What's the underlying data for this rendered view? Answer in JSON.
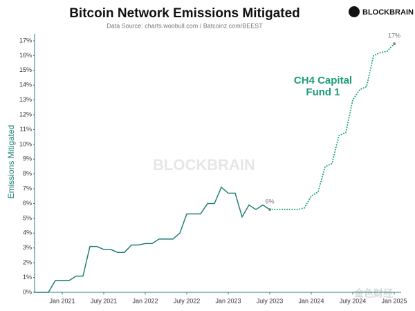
{
  "chart_data": {
    "type": "line",
    "title": "Bitcoin Network Emissions Mitigated",
    "subtitle": "Data Source: charts.woobull.com / Batcoinz.com/BEEST",
    "brand": "BLOCKBRAIN",
    "watermark": "BLOCKBRAIN",
    "corner_watermark": "金色财经",
    "y_label": "Emissions Mitigated",
    "annotation": [
      "CH4 Capital",
      "Fund 1"
    ],
    "annotation_color": "#1a9c78",
    "xlim": [
      "2020-09",
      "2025-02"
    ],
    "xticks": [
      {
        "value": "2021-01",
        "label": "Jan 2021"
      },
      {
        "value": "2021-07",
        "label": "July 2021"
      },
      {
        "value": "2022-01",
        "label": "Jan 2022"
      },
      {
        "value": "2022-07",
        "label": "July 2022"
      },
      {
        "value": "2023-01",
        "label": "Jan 2023"
      },
      {
        "value": "2023-07",
        "label": "July 2023"
      },
      {
        "value": "2024-01",
        "label": "Jan 2024"
      },
      {
        "value": "2024-07",
        "label": "July 2024"
      },
      {
        "value": "2025-01",
        "label": "Jan 2025"
      }
    ],
    "ylim": [
      0,
      17
    ],
    "yticks": [
      {
        "value": 0,
        "label": "0%"
      },
      {
        "value": 1,
        "label": "1%"
      },
      {
        "value": 2,
        "label": "2%"
      },
      {
        "value": 3,
        "label": "3%"
      },
      {
        "value": 4,
        "label": "4%"
      },
      {
        "value": 5,
        "label": "5%"
      },
      {
        "value": 6,
        "label": "6%"
      },
      {
        "value": 7,
        "label": "7%"
      },
      {
        "value": 8,
        "label": "8%"
      },
      {
        "value": 9,
        "label": "9%"
      },
      {
        "value": 10,
        "label": "10%"
      },
      {
        "value": 11,
        "label": "11%"
      },
      {
        "value": 12,
        "label": "12%"
      },
      {
        "value": 13,
        "label": "13%"
      },
      {
        "value": 14,
        "label": "14%"
      },
      {
        "value": 15,
        "label": "15%"
      },
      {
        "value": 16,
        "label": "16%"
      },
      {
        "value": 17,
        "label": "17%"
      }
    ],
    "series": [
      {
        "color": "#1f7f76",
        "dashed": false,
        "x": [
          "2020-09",
          "2020-10",
          "2020-11",
          "2020-12",
          "2021-01",
          "2021-02",
          "2021-03",
          "2021-04",
          "2021-05",
          "2021-06",
          "2021-07",
          "2021-08",
          "2021-09",
          "2021-10",
          "2021-11",
          "2021-12",
          "2022-01",
          "2022-02",
          "2022-03",
          "2022-04",
          "2022-05",
          "2022-06",
          "2022-07",
          "2022-08",
          "2022-09",
          "2022-10",
          "2022-11",
          "2022-12",
          "2023-01",
          "2023-02",
          "2023-03",
          "2023-04",
          "2023-05",
          "2023-06",
          "2023-07"
        ],
        "values": [
          0,
          0,
          0,
          0.8,
          0.8,
          0.8,
          1.1,
          1.1,
          3.1,
          3.1,
          2.9,
          2.9,
          2.7,
          2.7,
          3.2,
          3.2,
          3.3,
          3.3,
          3.6,
          3.6,
          3.6,
          4.0,
          5.3,
          5.3,
          5.3,
          6.0,
          6.0,
          7.1,
          6.7,
          6.7,
          5.1,
          5.9,
          5.6,
          5.9,
          5.6
        ],
        "value_labels": [
          null,
          null,
          null,
          null,
          null,
          null,
          null,
          null,
          null,
          null,
          null,
          null,
          null,
          null,
          null,
          null,
          null,
          null,
          null,
          null,
          null,
          null,
          null,
          null,
          null,
          null,
          null,
          null,
          null,
          null,
          null,
          null,
          null,
          null,
          "6%"
        ]
      },
      {
        "color": "#1aa37f",
        "dashed": true,
        "x": [
          "2023-07",
          "2023-08",
          "2023-09",
          "2023-10",
          "2023-11",
          "2023-12",
          "2024-01",
          "2024-02",
          "2024-03",
          "2024-04",
          "2024-05",
          "2024-06",
          "2024-07",
          "2024-08",
          "2024-09",
          "2024-10",
          "2024-11",
          "2024-12",
          "2025-01"
        ],
        "values": [
          5.6,
          5.6,
          5.6,
          5.6,
          5.6,
          5.7,
          6.5,
          6.8,
          8.5,
          8.7,
          10.6,
          10.8,
          13.0,
          13.7,
          13.9,
          16.0,
          16.2,
          16.3,
          16.8
        ],
        "value_labels": [
          null,
          null,
          null,
          null,
          null,
          null,
          null,
          null,
          null,
          null,
          null,
          null,
          null,
          null,
          null,
          null,
          null,
          null,
          "17%"
        ]
      }
    ]
  }
}
